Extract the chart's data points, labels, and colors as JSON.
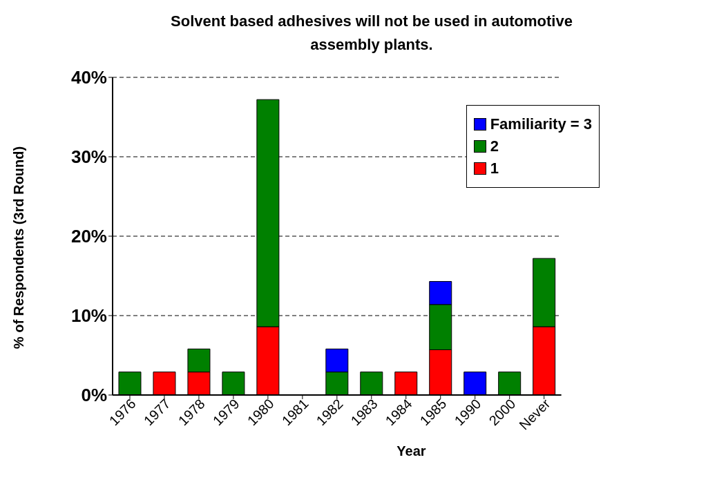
{
  "chart_data": {
    "type": "bar",
    "title": "Solvent based adhesives will not be used in automotive assembly plants.",
    "xlabel": "Year",
    "ylabel": "% of Respondents (3rd Round)",
    "categories": [
      "1976",
      "1977",
      "1978",
      "1979",
      "1980",
      "1981",
      "1982",
      "1983",
      "1984",
      "1985",
      "1990",
      "2000",
      "Never"
    ],
    "series": [
      {
        "name": "1",
        "color": "#ff0000",
        "values": [
          null,
          2.9,
          2.9,
          null,
          8.6,
          null,
          null,
          null,
          2.9,
          5.7,
          null,
          null,
          8.6
        ]
      },
      {
        "name": "2",
        "color": "#008000",
        "values": [
          2.9,
          null,
          2.9,
          2.9,
          28.6,
          null,
          2.9,
          2.9,
          null,
          5.7,
          null,
          2.9,
          8.6
        ]
      },
      {
        "name": "Familiarity = 3",
        "color": "#0000ff",
        "values": [
          null,
          null,
          null,
          null,
          null,
          null,
          2.9,
          null,
          null,
          2.9,
          2.9,
          null,
          null
        ]
      }
    ],
    "stacked": true,
    "ylim": [
      0,
      40
    ],
    "yticks": [
      {
        "value": 0,
        "label": "0%"
      },
      {
        "value": 10,
        "label": "10%"
      },
      {
        "value": 20,
        "label": "20%"
      },
      {
        "value": 30,
        "label": "30%"
      },
      {
        "value": 40,
        "label": "40%"
      }
    ],
    "grid": "y",
    "legend": "top right"
  }
}
